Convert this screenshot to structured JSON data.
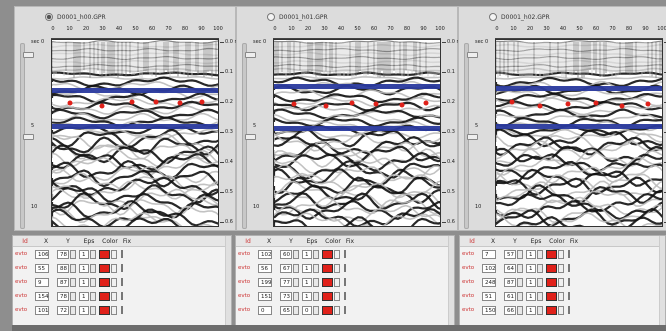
{
  "panels": [
    {
      "file": "D0001_h00.GPR",
      "selected": true,
      "rows": [
        {
          "id": "evto",
          "x": "106",
          "y": "78",
          "eps": "1"
        },
        {
          "id": "evto",
          "x": "55",
          "y": "88",
          "eps": "1"
        },
        {
          "id": "evto",
          "x": "9",
          "y": "87",
          "eps": "1"
        },
        {
          "id": "evto",
          "x": "154",
          "y": "78",
          "eps": "1"
        },
        {
          "id": "evto",
          "x": "101",
          "y": "72",
          "eps": "1"
        }
      ]
    },
    {
      "file": "D0001_h01.GPR",
      "selected": false,
      "rows": [
        {
          "id": "evto",
          "x": "102",
          "y": "60",
          "eps": "1"
        },
        {
          "id": "evto",
          "x": "56",
          "y": "67",
          "eps": "1"
        },
        {
          "id": "evto",
          "x": "199",
          "y": "77",
          "eps": "1"
        },
        {
          "id": "evto",
          "x": "151",
          "y": "73",
          "eps": "1"
        },
        {
          "id": "evto",
          "x": "0",
          "y": "65",
          "eps": "0"
        }
      ]
    },
    {
      "file": "D0001_h02.GPR",
      "selected": false,
      "rows": [
        {
          "id": "evto",
          "x": "7",
          "y": "57",
          "eps": "1"
        },
        {
          "id": "evto",
          "x": "102",
          "y": "64",
          "eps": "1"
        },
        {
          "id": "evto",
          "x": "248",
          "y": "87",
          "eps": "1"
        },
        {
          "id": "evto",
          "x": "51",
          "y": "61",
          "eps": "1"
        },
        {
          "id": "evto",
          "x": "150",
          "y": "66",
          "eps": "1"
        }
      ]
    }
  ],
  "axis": {
    "x_ticks": [
      "0",
      "10",
      "20",
      "30",
      "40",
      "50",
      "60",
      "70",
      "80",
      "90",
      "100"
    ],
    "depth_left": [
      "sec 0",
      "5",
      "10"
    ],
    "depth_right": [
      "0.0 m",
      "0.1",
      "0.2",
      "0.3",
      "0.4",
      "0.5",
      "0.6"
    ]
  },
  "table_headers": {
    "id": "Id",
    "x": "X",
    "y": "Y",
    "eps": "Eps",
    "color": "Color",
    "fix": "Fix"
  },
  "colors": {
    "marker": "#e0211a",
    "layer_line": "#2a3a9e"
  }
}
